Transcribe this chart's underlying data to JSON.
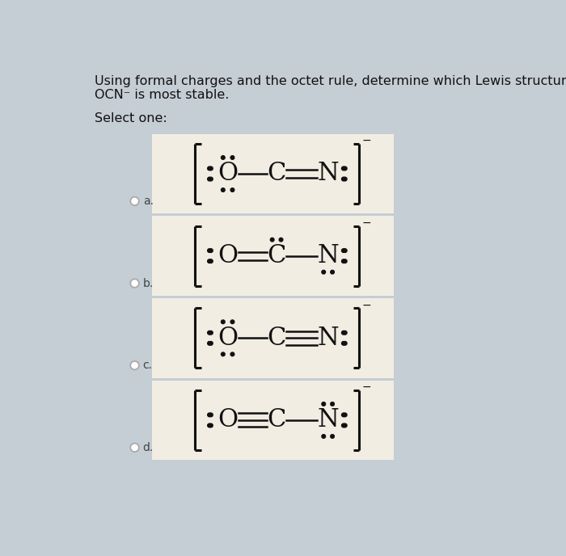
{
  "title_line1": "Using formal charges and the octet rule, determine which Lewis structure of",
  "title_line2": "OCN⁻ is most stable.",
  "select_text": "Select one:",
  "bg_color": "#c5cdd5",
  "box_color": "#f2ede3",
  "text_color": "#111111",
  "label_color": "#444444",
  "font_size_title": 11.5,
  "font_size_formula": 22,
  "font_size_label": 10,
  "fig_w": 7.0,
  "fig_h": 6.88,
  "dpi": 100
}
